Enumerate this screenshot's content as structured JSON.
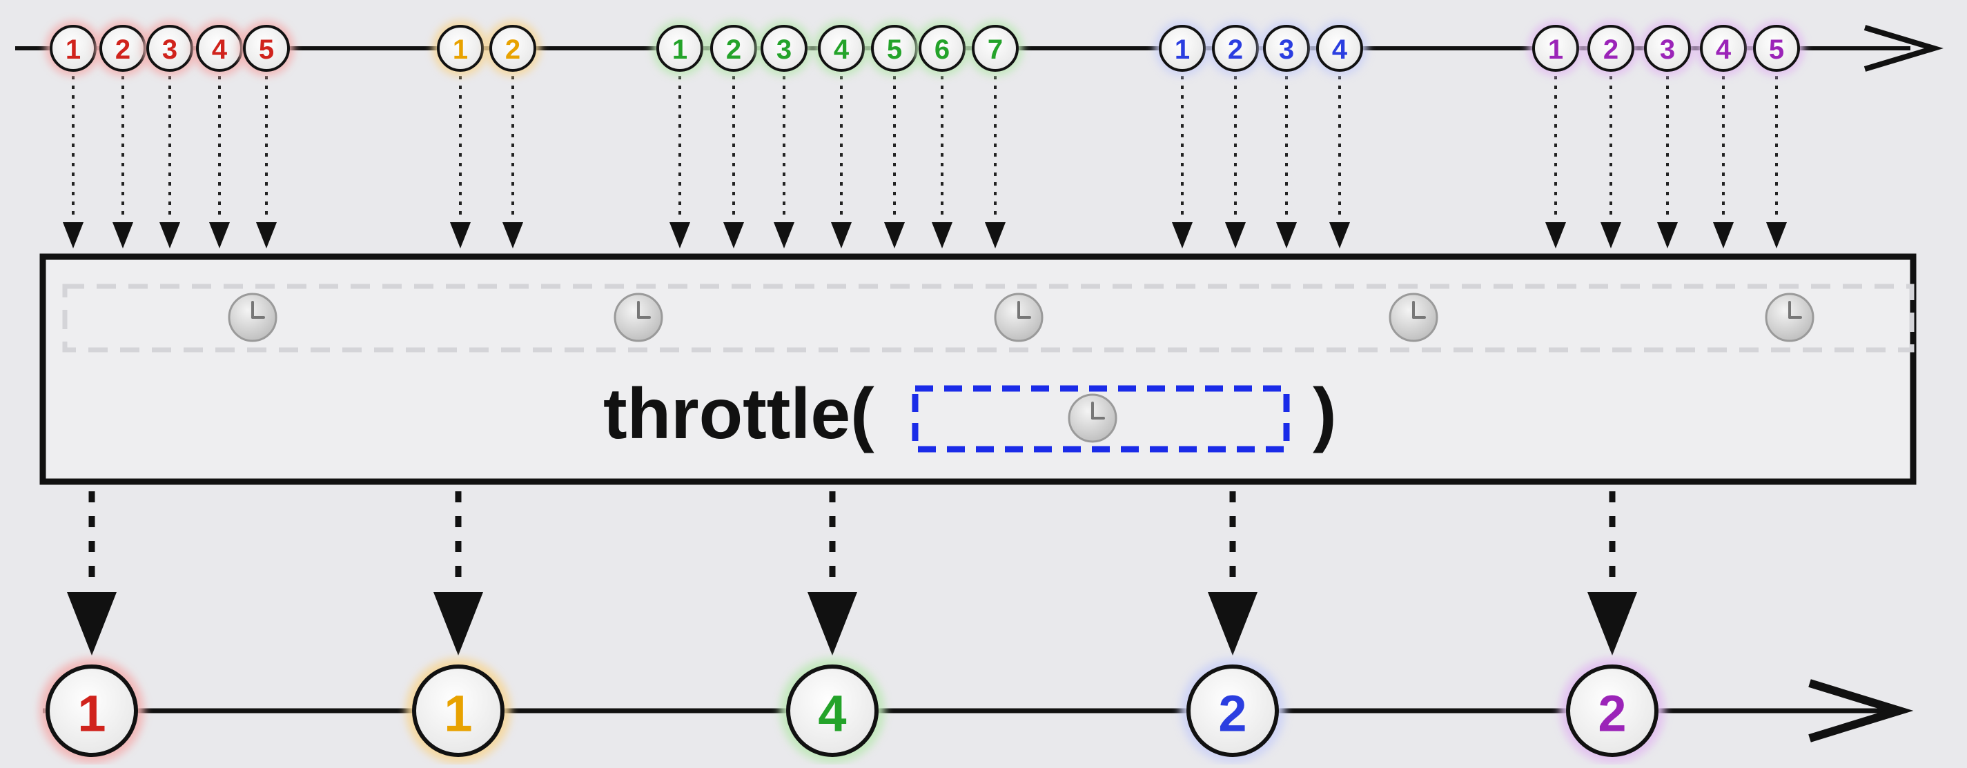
{
  "operator": {
    "label_prefix": "throttle(",
    "label_suffix": ")",
    "parameter_icon": "clock-icon"
  },
  "colors": {
    "red": "#d0231c",
    "orange": "#e8a200",
    "green": "#24a32a",
    "blue": "#2b3ee0",
    "purple": "#9b24b8",
    "line": "#111111",
    "parameter_box_border": "#1a2be8"
  },
  "input_groups": [
    {
      "color": "red",
      "glow": "#f3b3b3",
      "values": [
        "1",
        "2",
        "3",
        "4",
        "5"
      ]
    },
    {
      "color": "orange",
      "glow": "#f6d79a",
      "values": [
        "1",
        "2"
      ]
    },
    {
      "color": "green",
      "glow": "#bfe8b8",
      "values": [
        "1",
        "2",
        "3",
        "4",
        "5",
        "6",
        "7"
      ]
    },
    {
      "color": "blue",
      "glow": "#cdd2f6",
      "values": [
        "1",
        "2",
        "3",
        "4"
      ]
    },
    {
      "color": "purple",
      "glow": "#e2bff0",
      "values": [
        "1",
        "2",
        "3",
        "4",
        "5"
      ]
    }
  ],
  "output_marbles": [
    {
      "color": "red",
      "glow": "#f3b3b3",
      "value": "1"
    },
    {
      "color": "orange",
      "glow": "#f6d79a",
      "value": "1"
    },
    {
      "color": "green",
      "glow": "#bfe8b8",
      "value": "4"
    },
    {
      "color": "blue",
      "glow": "#cdd2f6",
      "value": "2"
    },
    {
      "color": "purple",
      "glow": "#e2bff0",
      "value": "2"
    }
  ],
  "timer_icons": [
    "clock-icon",
    "clock-icon",
    "clock-icon",
    "clock-icon",
    "clock-icon"
  ]
}
